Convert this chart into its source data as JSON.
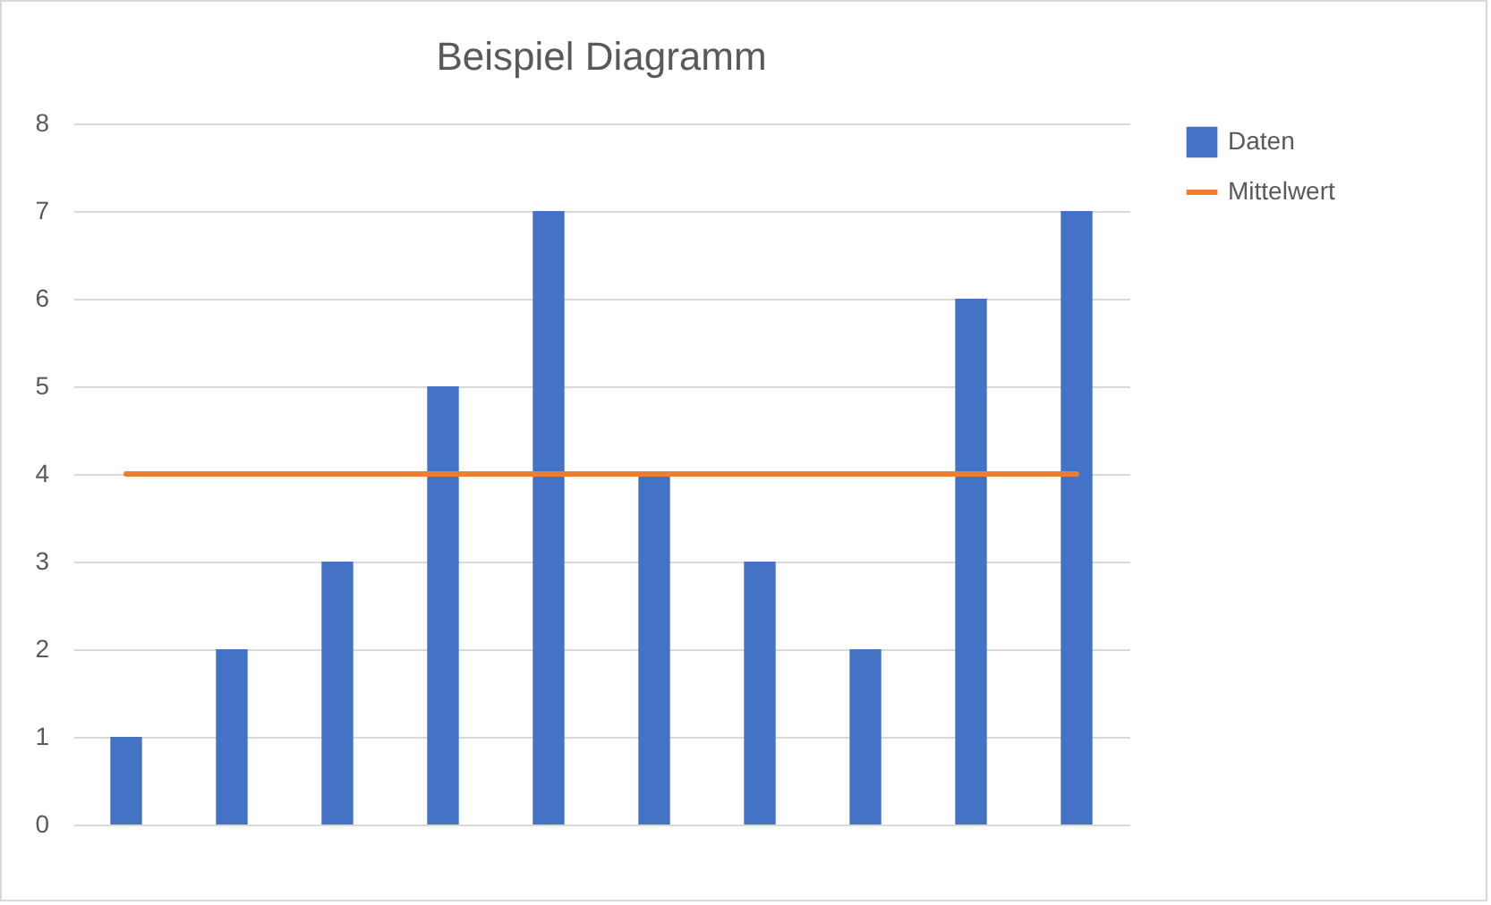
{
  "chart_data": {
    "type": "bar",
    "title": "Beispiel Diagramm",
    "categories": [
      null,
      null,
      null,
      null,
      null,
      null,
      null,
      null,
      null,
      null
    ],
    "series": [
      {
        "name": "Daten",
        "color": "#4472c4",
        "values": [
          1,
          2,
          3,
          5,
          7,
          4,
          3,
          2,
          6,
          7
        ]
      },
      {
        "name": "Mittelwert",
        "type": "line",
        "color": "#ed7d31",
        "values": [
          4,
          4,
          4,
          4,
          4,
          4,
          4,
          4,
          4,
          4
        ]
      }
    ],
    "ylim": [
      0,
      8
    ],
    "yticks": [
      0,
      1,
      2,
      3,
      4,
      5,
      6,
      7,
      8
    ],
    "grid": "y",
    "legend": "right"
  }
}
